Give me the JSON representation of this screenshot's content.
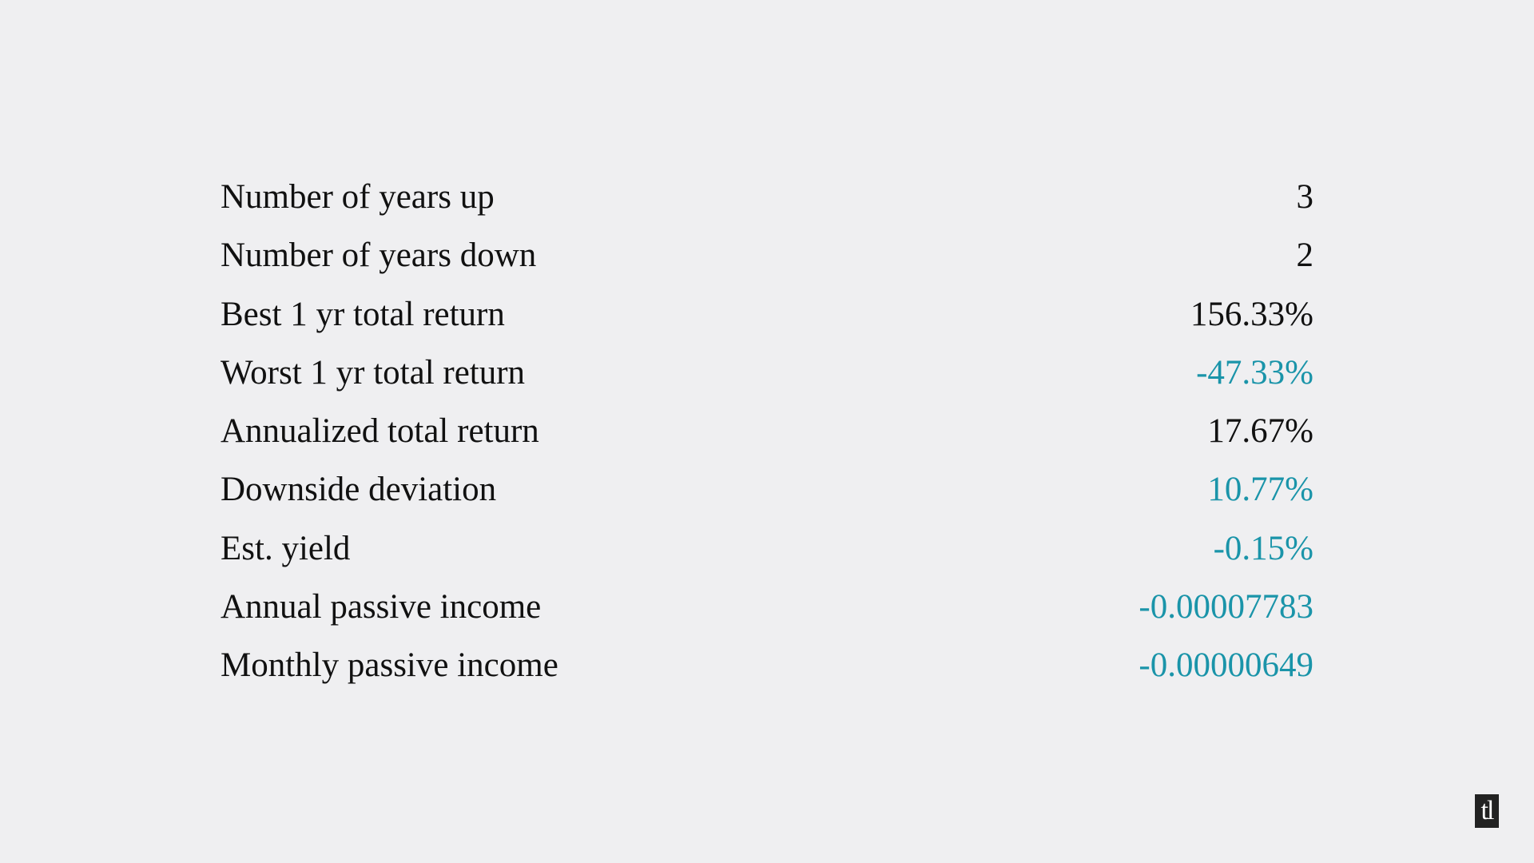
{
  "colors": {
    "background": "#efeff1",
    "text": "#111111",
    "accent": "#1a94a9"
  },
  "stats": [
    {
      "label": "Number of years up",
      "value": "3",
      "tone": "neutral"
    },
    {
      "label": "Number of years down",
      "value": "2",
      "tone": "neutral"
    },
    {
      "label": "Best 1 yr total return",
      "value": "156.33%",
      "tone": "neutral"
    },
    {
      "label": "Worst 1 yr total return",
      "value": "-47.33%",
      "tone": "accent"
    },
    {
      "label": "Annualized total return",
      "value": "17.67%",
      "tone": "neutral"
    },
    {
      "label": "Downside deviation",
      "value": "10.77%",
      "tone": "accent"
    },
    {
      "label": "Est. yield",
      "value": "-0.15%",
      "tone": "accent"
    },
    {
      "label": "Annual passive income",
      "value": "-0.00007783",
      "tone": "accent"
    },
    {
      "label": "Monthly passive income",
      "value": "-0.00000649",
      "tone": "accent"
    }
  ],
  "logo": {
    "text": "tl",
    "icon": "tl-logo-icon"
  }
}
